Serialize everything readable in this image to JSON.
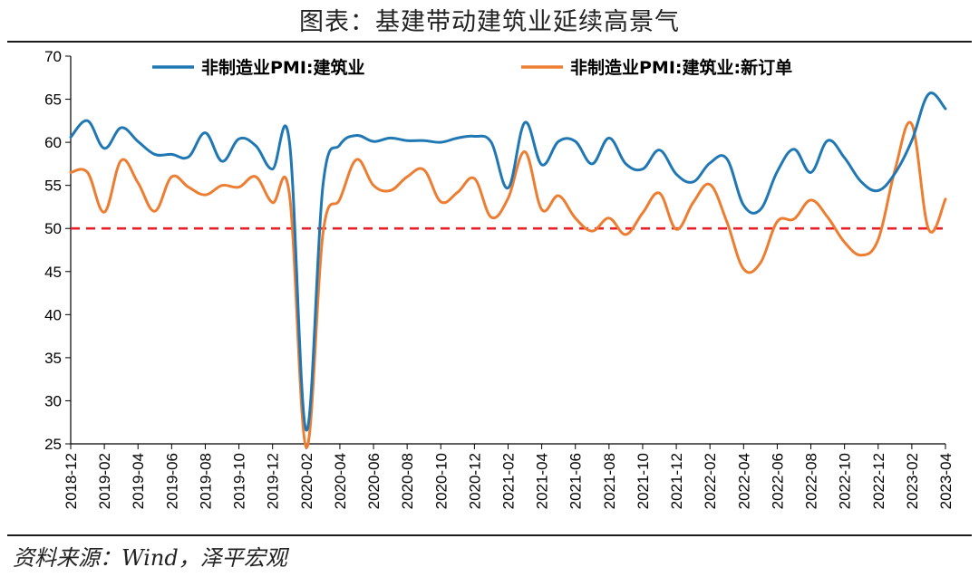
{
  "header": {
    "title": "图表：基建带动建筑业延续高景气"
  },
  "footer": {
    "source": "资料来源：Wind，泽平宏观"
  },
  "chart_data": {
    "type": "line",
    "title": "图表：基建带动建筑业延续高景气",
    "xlabel": "",
    "ylabel": "",
    "ylim": [
      25,
      70
    ],
    "yticks": [
      25,
      30,
      35,
      40,
      45,
      50,
      55,
      60,
      65,
      70
    ],
    "grid": false,
    "legend_position": "top",
    "x": [
      "2018-12",
      "2019-01",
      "2019-02",
      "2019-03",
      "2019-04",
      "2019-05",
      "2019-06",
      "2019-07",
      "2019-08",
      "2019-09",
      "2019-10",
      "2019-11",
      "2019-12",
      "2020-01",
      "2020-02",
      "2020-03",
      "2020-04",
      "2020-05",
      "2020-06",
      "2020-07",
      "2020-08",
      "2020-09",
      "2020-10",
      "2020-11",
      "2020-12",
      "2021-01",
      "2021-02",
      "2021-03",
      "2021-04",
      "2021-05",
      "2021-06",
      "2021-07",
      "2021-08",
      "2021-09",
      "2021-10",
      "2021-11",
      "2021-12",
      "2022-01",
      "2022-02",
      "2022-03",
      "2022-04",
      "2022-05",
      "2022-06",
      "2022-07",
      "2022-08",
      "2022-09",
      "2022-10",
      "2022-11",
      "2022-12",
      "2023-01",
      "2023-02",
      "2023-03",
      "2023-04"
    ],
    "x_tick_labels": [
      "2018-12",
      "2019-02",
      "2019-04",
      "2019-06",
      "2019-08",
      "2019-10",
      "2019-12",
      "2020-02",
      "2020-04",
      "2020-06",
      "2020-08",
      "2020-10",
      "2020-12",
      "2021-02",
      "2021-04",
      "2021-06",
      "2021-08",
      "2021-10",
      "2021-12",
      "2022-02",
      "2022-04",
      "2022-06",
      "2022-08",
      "2022-10",
      "2022-12",
      "2023-02",
      "2023-04"
    ],
    "series": [
      {
        "name": "非制造业PMI:建筑业",
        "color": "#1f77b4",
        "style": "solid",
        "values": [
          60.6,
          62.5,
          59.3,
          61.7,
          60.1,
          58.6,
          58.6,
          58.3,
          61.1,
          57.8,
          60.4,
          59.6,
          56.9,
          60.1,
          26.6,
          55.1,
          59.7,
          60.8,
          60.1,
          60.5,
          60.2,
          60.2,
          60.0,
          60.5,
          60.7,
          60.0,
          54.7,
          62.3,
          57.4,
          60.1,
          60.1,
          57.5,
          60.5,
          57.5,
          56.9,
          59.1,
          56.3,
          55.4,
          57.6,
          58.1,
          52.7,
          52.2,
          56.6,
          59.2,
          56.5,
          60.2,
          58.2,
          55.4,
          54.4,
          56.4,
          60.2,
          65.6,
          63.9
        ]
      },
      {
        "name": "非制造业PMI:建筑业:新订单",
        "color": "#ed7d31",
        "style": "solid",
        "values": [
          56.5,
          56.5,
          51.9,
          57.9,
          55.3,
          52.0,
          56.0,
          54.8,
          53.9,
          55.0,
          54.8,
          56.0,
          53.0,
          54.0,
          24.6,
          49.5,
          53.4,
          58.0,
          55.0,
          54.4,
          56.0,
          56.8,
          53.1,
          54.2,
          55.8,
          51.3,
          53.5,
          58.9,
          52.2,
          53.8,
          51.2,
          49.7,
          51.2,
          49.3,
          51.8,
          54.1,
          49.9,
          53.0,
          55.1,
          50.8,
          45.3,
          46.0,
          50.8,
          51.1,
          53.3,
          51.3,
          48.4,
          46.9,
          48.7,
          56.8,
          62.1,
          49.9,
          53.4
        ]
      },
      {
        "name": "",
        "color": "#e8202a",
        "style": "dashed",
        "values": [
          50,
          50,
          50,
          50,
          50,
          50,
          50,
          50,
          50,
          50,
          50,
          50,
          50,
          50,
          50,
          50,
          50,
          50,
          50,
          50,
          50,
          50,
          50,
          50,
          50,
          50,
          50,
          50,
          50,
          50,
          50,
          50,
          50,
          50,
          50,
          50,
          50,
          50,
          50,
          50,
          50,
          50,
          50,
          50,
          50,
          50,
          50,
          50,
          50,
          50,
          50,
          50,
          50
        ]
      }
    ]
  }
}
